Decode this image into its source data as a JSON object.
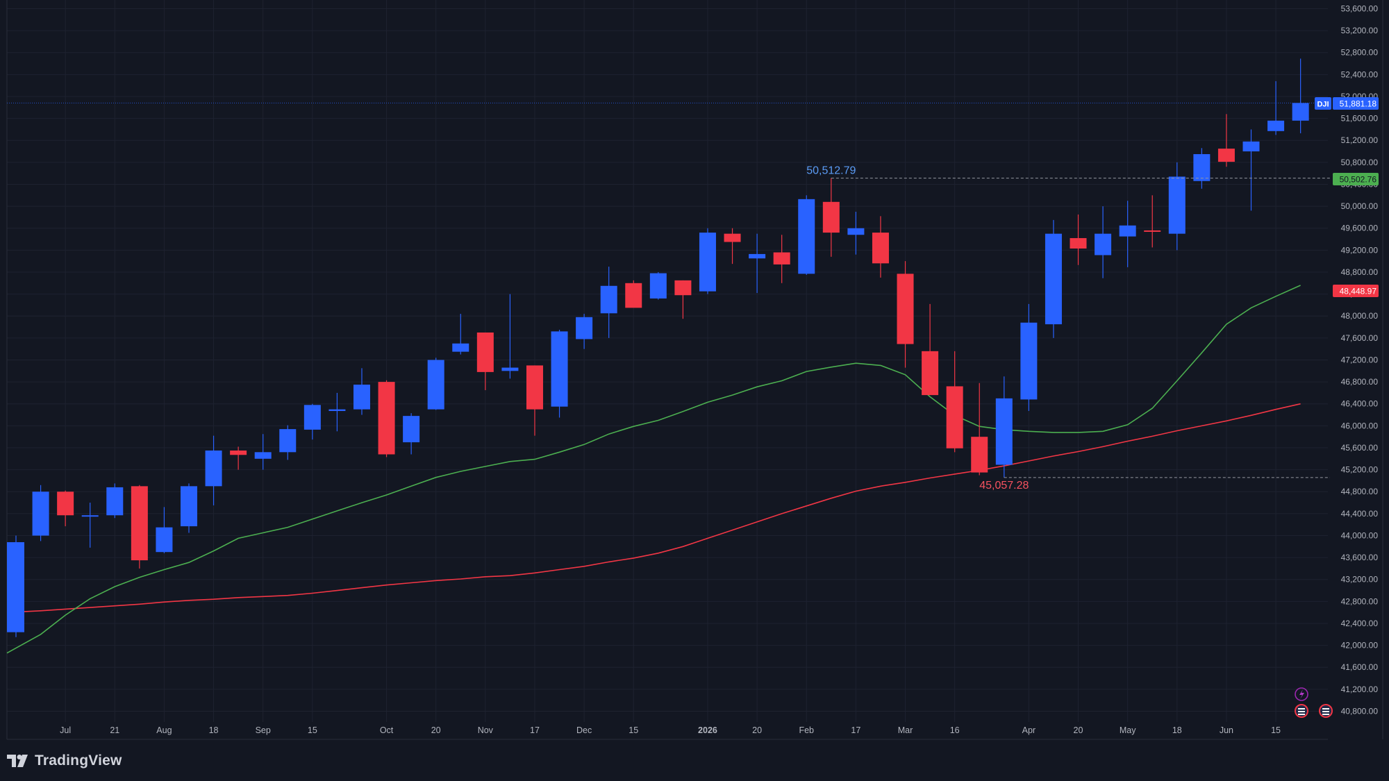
{
  "branding": {
    "name": "TradingView"
  },
  "colors": {
    "background": "#131722",
    "grid": "#1e2230",
    "up": "#2962ff",
    "down": "#f23645",
    "ma_short": "#4caf50",
    "ma_long": "#f23645",
    "axis_text": "#b2b5be",
    "high_label": "#5b9cf6",
    "low_label": "#f7525f"
  },
  "chart_data": {
    "type": "candlestick",
    "symbol": "DJI",
    "timeframe": "weekly",
    "ylim": [
      40600,
      53800
    ],
    "y_ticks": [
      "53,600.00",
      "53,200.00",
      "52,800.00",
      "52,400.00",
      "52,000.00",
      "51,600.00",
      "51,200.00",
      "50,800.00",
      "50,400.00",
      "50,000.00",
      "49,600.00",
      "49,200.00",
      "48,800.00",
      "48,400.00",
      "48,000.00",
      "47,600.00",
      "47,200.00",
      "46,800.00",
      "46,400.00",
      "46,000.00",
      "45,600.00",
      "45,200.00",
      "44,800.00",
      "44,400.00",
      "44,000.00",
      "43,600.00",
      "43,200.00",
      "42,800.00",
      "42,400.00",
      "42,000.00",
      "41,600.00",
      "41,200.00",
      "40,800.00"
    ],
    "x_ticks": [
      {
        "label": "Jul",
        "index": 2
      },
      {
        "label": "21",
        "index": 4
      },
      {
        "label": "Aug",
        "index": 6
      },
      {
        "label": "18",
        "index": 8
      },
      {
        "label": "Sep",
        "index": 10
      },
      {
        "label": "15",
        "index": 12
      },
      {
        "label": "Oct",
        "index": 15
      },
      {
        "label": "20",
        "index": 17
      },
      {
        "label": "Nov",
        "index": 19
      },
      {
        "label": "17",
        "index": 21
      },
      {
        "label": "Dec",
        "index": 23
      },
      {
        "label": "15",
        "index": 25
      },
      {
        "label": "2026",
        "index": 28
      },
      {
        "label": "20",
        "index": 30
      },
      {
        "label": "Feb",
        "index": 32
      },
      {
        "label": "17",
        "index": 34
      },
      {
        "label": "Mar",
        "index": 36
      },
      {
        "label": "16",
        "index": 38
      },
      {
        "label": "Apr",
        "index": 41
      },
      {
        "label": "20",
        "index": 43
      },
      {
        "label": "May",
        "index": 45
      },
      {
        "label": "18",
        "index": 47
      },
      {
        "label": "Jun",
        "index": 49
      },
      {
        "label": "15",
        "index": 51
      }
    ],
    "candles": [
      {
        "o": 42240,
        "h": 44000,
        "l": 42150,
        "c": 43880
      },
      {
        "o": 44000,
        "h": 44920,
        "l": 43900,
        "c": 44800
      },
      {
        "o": 44800,
        "h": 44820,
        "l": 44170,
        "c": 44370
      },
      {
        "o": 44350,
        "h": 44600,
        "l": 43780,
        "c": 44370
      },
      {
        "o": 44370,
        "h": 44950,
        "l": 44320,
        "c": 44880
      },
      {
        "o": 44900,
        "h": 44920,
        "l": 43400,
        "c": 43550
      },
      {
        "o": 43700,
        "h": 44520,
        "l": 43680,
        "c": 44150
      },
      {
        "o": 44170,
        "h": 44950,
        "l": 44050,
        "c": 44900
      },
      {
        "o": 44900,
        "h": 45820,
        "l": 44550,
        "c": 45550
      },
      {
        "o": 45550,
        "h": 45620,
        "l": 45200,
        "c": 45470
      },
      {
        "o": 45400,
        "h": 45850,
        "l": 45200,
        "c": 45520
      },
      {
        "o": 45520,
        "h": 46010,
        "l": 45380,
        "c": 45940
      },
      {
        "o": 45930,
        "h": 46400,
        "l": 45750,
        "c": 46380
      },
      {
        "o": 46270,
        "h": 46600,
        "l": 45900,
        "c": 46300
      },
      {
        "o": 46300,
        "h": 47050,
        "l": 46200,
        "c": 46750
      },
      {
        "o": 46800,
        "h": 46830,
        "l": 45430,
        "c": 45480
      },
      {
        "o": 45700,
        "h": 46230,
        "l": 45480,
        "c": 46180
      },
      {
        "o": 46300,
        "h": 47240,
        "l": 46290,
        "c": 47200
      },
      {
        "o": 47350,
        "h": 48040,
        "l": 47300,
        "c": 47500
      },
      {
        "o": 47700,
        "h": 47700,
        "l": 46650,
        "c": 46980
      },
      {
        "o": 47000,
        "h": 48400,
        "l": 46860,
        "c": 47060
      },
      {
        "o": 47100,
        "h": 47100,
        "l": 45820,
        "c": 46300
      },
      {
        "o": 46350,
        "h": 47750,
        "l": 46150,
        "c": 47720
      },
      {
        "o": 47580,
        "h": 48040,
        "l": 47400,
        "c": 47980
      },
      {
        "o": 48050,
        "h": 48900,
        "l": 47600,
        "c": 48550
      },
      {
        "o": 48600,
        "h": 48650,
        "l": 48200,
        "c": 48150
      },
      {
        "o": 48320,
        "h": 48800,
        "l": 48300,
        "c": 48780
      },
      {
        "o": 48650,
        "h": 48650,
        "l": 47950,
        "c": 48380
      },
      {
        "o": 48450,
        "h": 49600,
        "l": 48400,
        "c": 49520
      },
      {
        "o": 49500,
        "h": 49600,
        "l": 48950,
        "c": 49350
      },
      {
        "o": 49050,
        "h": 49500,
        "l": 48420,
        "c": 49130
      },
      {
        "o": 49160,
        "h": 49480,
        "l": 48600,
        "c": 48940
      },
      {
        "o": 48770,
        "h": 50200,
        "l": 48750,
        "c": 50130
      },
      {
        "o": 50080,
        "h": 50512.79,
        "l": 49080,
        "c": 49520
      },
      {
        "o": 49480,
        "h": 49900,
        "l": 49120,
        "c": 49600
      },
      {
        "o": 49520,
        "h": 49820,
        "l": 48700,
        "c": 48960
      },
      {
        "o": 48770,
        "h": 49000,
        "l": 47060,
        "c": 47490
      },
      {
        "o": 47360,
        "h": 48220,
        "l": 46580,
        "c": 46560
      },
      {
        "o": 46720,
        "h": 47360,
        "l": 45520,
        "c": 45590
      },
      {
        "o": 45800,
        "h": 46780,
        "l": 45100,
        "c": 45150
      },
      {
        "o": 45290,
        "h": 46900,
        "l": 45057.28,
        "c": 46500
      },
      {
        "o": 46480,
        "h": 48220,
        "l": 46270,
        "c": 47880
      },
      {
        "o": 47850,
        "h": 49750,
        "l": 47600,
        "c": 49500
      },
      {
        "o": 49420,
        "h": 49850,
        "l": 48930,
        "c": 49230
      },
      {
        "o": 49110,
        "h": 50000,
        "l": 48690,
        "c": 49500
      },
      {
        "o": 49450,
        "h": 50100,
        "l": 48890,
        "c": 49650
      },
      {
        "o": 49560,
        "h": 50200,
        "l": 49250,
        "c": 49550
      },
      {
        "o": 49500,
        "h": 50800,
        "l": 49200,
        "c": 50540
      },
      {
        "o": 50460,
        "h": 51060,
        "l": 50320,
        "c": 50950
      },
      {
        "o": 51050,
        "h": 51680,
        "l": 50720,
        "c": 50810
      },
      {
        "o": 51000,
        "h": 51400,
        "l": 49920,
        "c": 51180
      },
      {
        "o": 51370,
        "h": 52280,
        "l": 51300,
        "c": 51560
      },
      {
        "o": 51560,
        "h": 52690,
        "l": 51330,
        "c": 51881.18
      }
    ],
    "ma_short": [
      41860,
      42200,
      42550,
      42850,
      43070,
      43240,
      43380,
      43510,
      43720,
      43950,
      44050,
      44150,
      44300,
      44450,
      44600,
      44740,
      44900,
      45060,
      45170,
      45260,
      45350,
      45390,
      45520,
      45660,
      45850,
      45990,
      46100,
      46260,
      46430,
      46560,
      46710,
      46820,
      46990,
      47070,
      47140,
      47100,
      46930,
      46530,
      46190,
      45990,
      45930,
      45900,
      45880,
      45880,
      45900,
      46020,
      46320,
      46820,
      47330,
      47850,
      48150,
      48360,
      48560
    ],
    "ma_long": [
      42600,
      42630,
      42660,
      42690,
      42720,
      42750,
      42790,
      42820,
      42840,
      42870,
      42890,
      42910,
      42950,
      43000,
      43050,
      43100,
      43140,
      43180,
      43210,
      43250,
      43270,
      43320,
      43380,
      43440,
      43520,
      43590,
      43680,
      43800,
      43950,
      44100,
      44250,
      44400,
      44540,
      44680,
      44810,
      44900,
      44970,
      45050,
      45120,
      45190,
      45270,
      45360,
      45450,
      45530,
      45620,
      45720,
      45810,
      45910,
      46000,
      46090,
      46190,
      46300,
      46400
    ],
    "price_labels": [
      {
        "label": "DJI",
        "value": "51,881.18"
      },
      {
        "value": "50,502.76"
      },
      {
        "value": "48,448.97"
      }
    ],
    "annotations": [
      {
        "text": "50,512.79",
        "value": 50512.79,
        "index": 33,
        "kind": "high"
      },
      {
        "text": "45,057.28",
        "value": 45057.28,
        "index": 40,
        "kind": "low"
      }
    ]
  }
}
